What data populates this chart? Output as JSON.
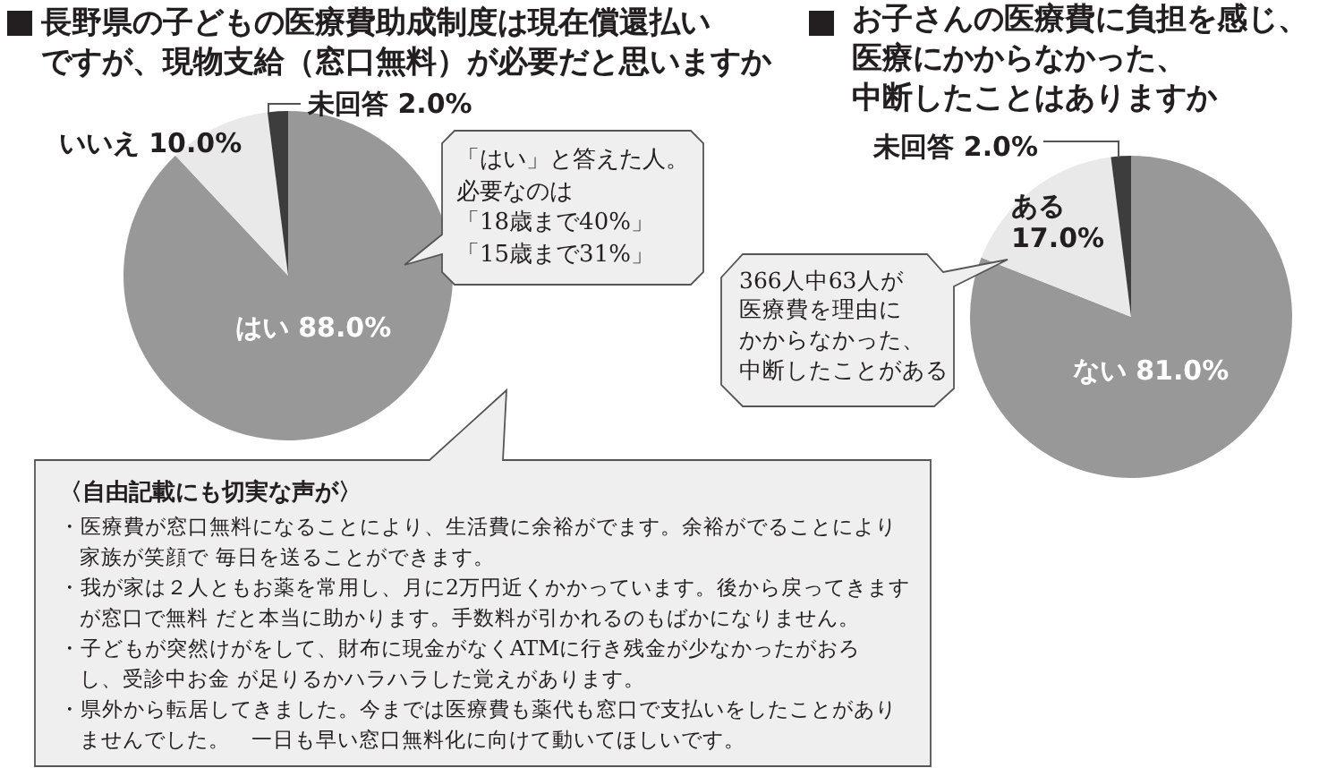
{
  "chart_data": [
    {
      "type": "pie",
      "title": "長野県の子どもの医療費助成制度は現在償還払いですが、現物支給（窓口無料）が必要だと思いますか",
      "categories": [
        "はい",
        "いいえ",
        "未回答"
      ],
      "values": [
        88,
        10,
        2
      ],
      "value_labels": [
        "88.0%",
        "10.0%",
        "2.0%"
      ],
      "colors": [
        "#989898",
        "#e9e9e9",
        "#3d3d3d"
      ],
      "annotations": [
        "「はい」と答えた人。必要なのは「18歳まで40%」「15歳まで31%」"
      ]
    },
    {
      "type": "pie",
      "title": "お子さんの医療費に負担を感じ、医療にかからなかった、中断したことはありますか",
      "categories": [
        "ない",
        "ある",
        "未回答"
      ],
      "values": [
        81,
        17,
        2
      ],
      "value_labels": [
        "81.0%",
        "17.0%",
        "2.0%"
      ],
      "colors": [
        "#989898",
        "#e9e9e9",
        "#3d3d3d"
      ],
      "annotations": [
        "366人中63人が医療費を理由にかからなかった、中断したことがある"
      ]
    },
    {
      "type": "other",
      "title": "〈自由記載にも切実な声が〉",
      "annotations": [
        "・医療費が窓口無料になることにより、生活費に余裕がでます。余裕がでることにより家族が笑顔で 毎日を送ることができます。",
        "・我が家は２人ともお薬を常用し、月に2万円近くかかっています。後から戻ってきますが窓口で無料 だと本当に助かります。手数料が引かれるのもばかになりません。",
        "・子どもが突然けがをして、財布に現金がなくATMに行き残金が少なかったがおろし、受診中お金 が足りるかハラハラした覚えがあります。",
        "・県外から転居してきました。今までは医療費も薬代も窓口で支払いをしたことがありませんでした。　一日も早い窓口無料化に向けて動いてほしいです。"
      ]
    }
  ]
}
